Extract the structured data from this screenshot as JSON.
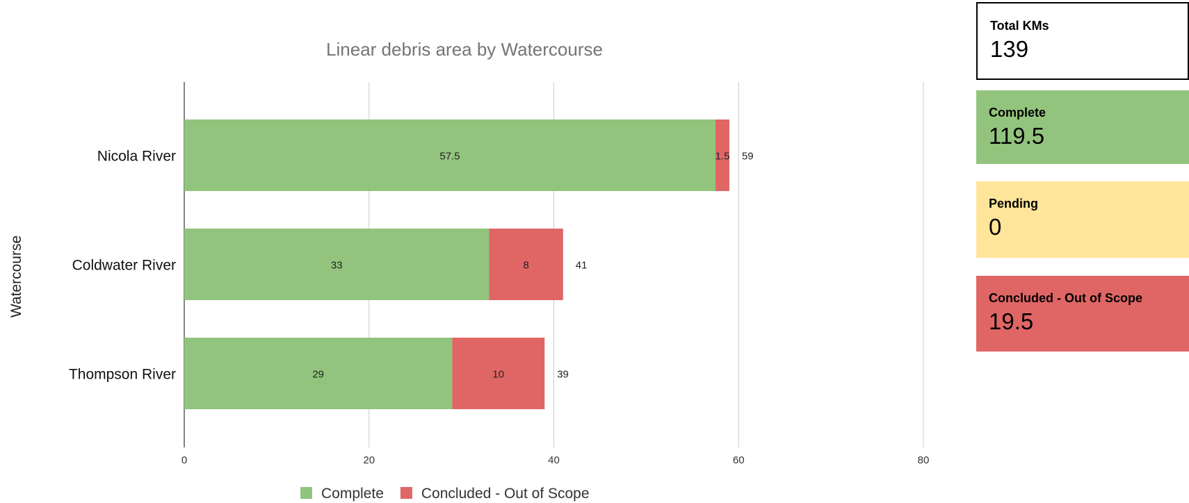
{
  "chart_data": {
    "type": "bar",
    "orientation": "horizontal",
    "stacked": true,
    "title": "Linear debris area by Watercourse",
    "ylabel": "Watercourse",
    "xlabel": "",
    "categories": [
      "Nicola River",
      "Coldwater River",
      "Thompson River"
    ],
    "series": [
      {
        "name": "Complete",
        "color": "#93c47d",
        "values": [
          57.5,
          33,
          29
        ]
      },
      {
        "name": "Concluded - Out of Scope",
        "color": "#e06666",
        "values": [
          1.5,
          8,
          10
        ]
      }
    ],
    "totals": [
      59,
      41,
      39
    ],
    "xlim": [
      0,
      80
    ],
    "xticks": [
      0,
      20,
      40,
      60,
      80
    ],
    "grid": true,
    "legend": "bottom"
  },
  "cards": [
    {
      "label": "Total KMs",
      "value": "139",
      "bg": "#ffffff",
      "border": "#000000"
    },
    {
      "label": "Complete",
      "value": "119.5",
      "bg": "#93c47d"
    },
    {
      "label": "Pending",
      "value": "0",
      "bg": "#ffe599"
    },
    {
      "label": "Concluded - Out of Scope",
      "value": "19.5",
      "bg": "#e06666"
    }
  ]
}
